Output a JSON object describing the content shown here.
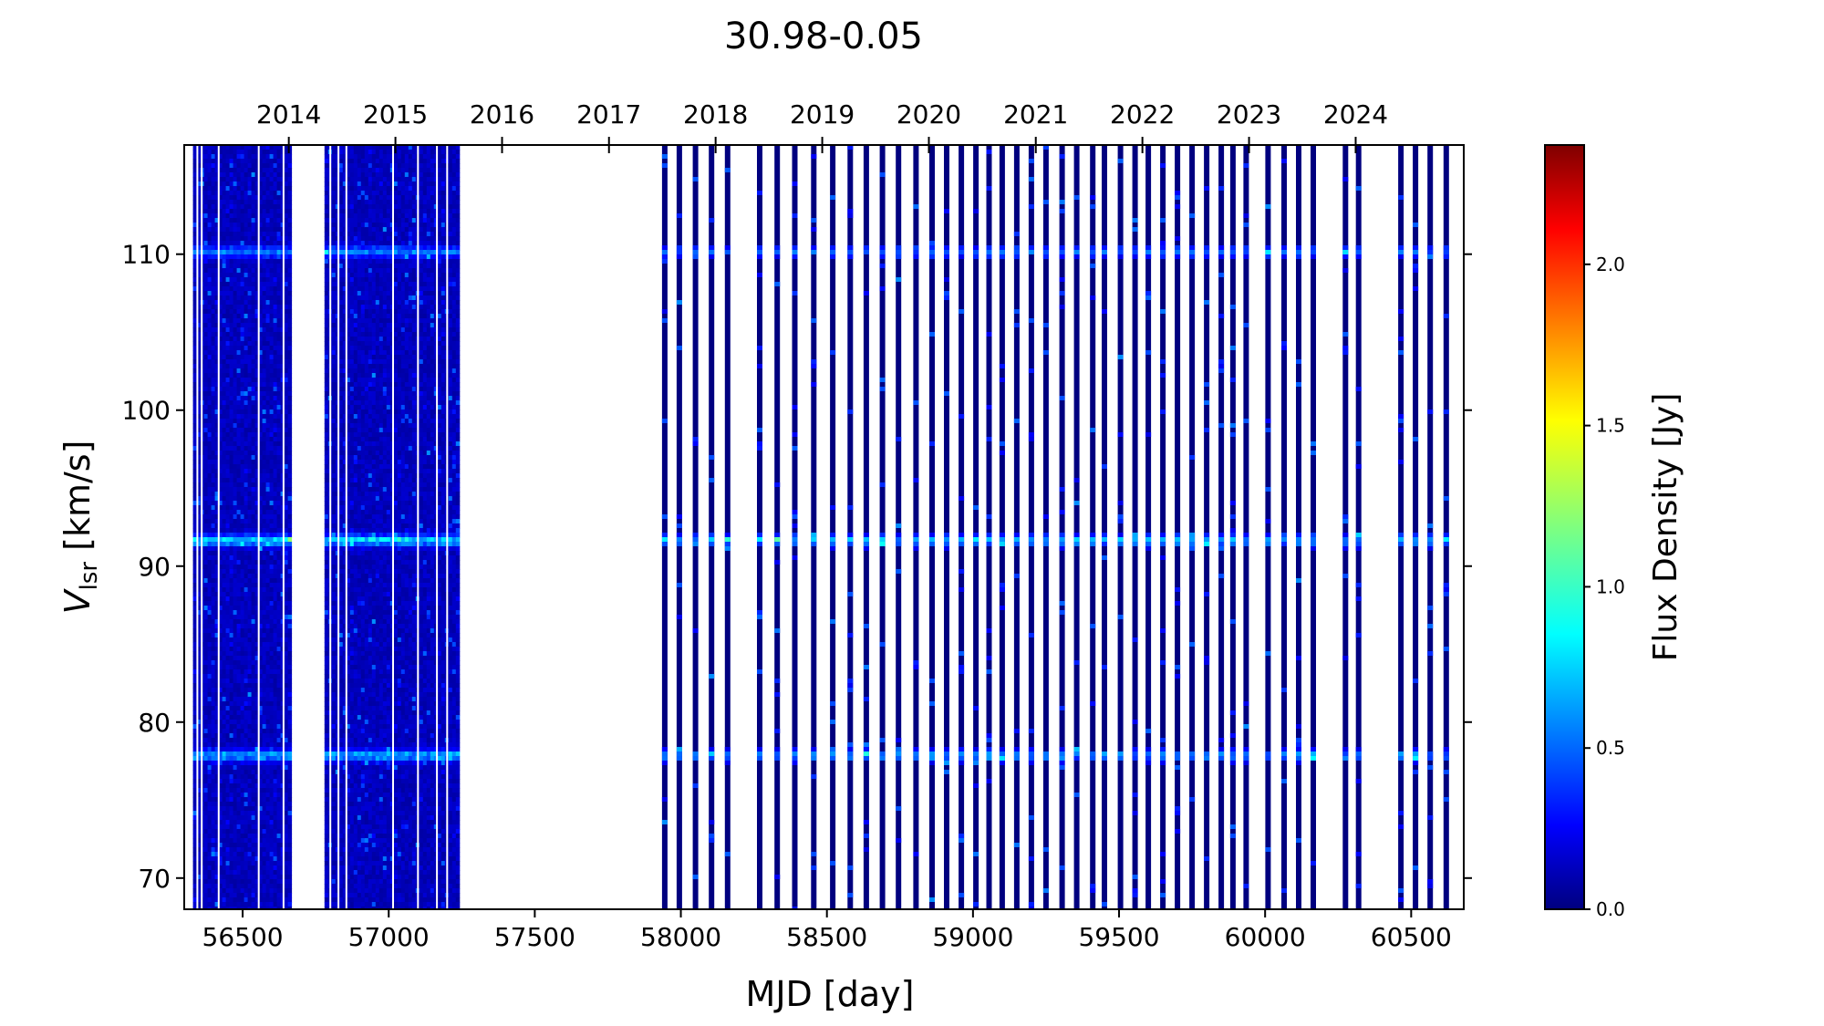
{
  "chart_data": {
    "type": "heatmap",
    "title": "30.98-0.05",
    "xlabel": "MJD [day]",
    "ylabel_main": "V",
    "ylabel_sub": "lsr",
    "ylabel_unit": " [km/s]",
    "colorbar_label": "Flux Density [Jy]",
    "xlim": [
      56300,
      60680
    ],
    "ylim": [
      68,
      117
    ],
    "clim": [
      0,
      2.37
    ],
    "colormap": "jet",
    "x_ticks": [
      56500,
      57000,
      57500,
      58000,
      58500,
      59000,
      59500,
      60000,
      60500
    ],
    "x_tick_labels": [
      "56500",
      "57000",
      "57500",
      "58000",
      "58500",
      "59000",
      "59500",
      "60000",
      "60500"
    ],
    "y_ticks": [
      70,
      80,
      90,
      100,
      110
    ],
    "y_tick_labels": [
      "70",
      "80",
      "90",
      "100",
      "110"
    ],
    "top_axis": {
      "years": [
        "2014",
        "2015",
        "2016",
        "2017",
        "2018",
        "2019",
        "2020",
        "2021",
        "2022",
        "2023",
        "2024"
      ],
      "mjd": [
        56658,
        57023,
        57388,
        57754,
        58119,
        58484,
        58849,
        59215,
        59580,
        59945,
        60310
      ]
    },
    "colorbar_ticks": [
      0.0,
      0.5,
      1.0,
      1.5,
      2.0
    ],
    "colorbar_tick_labels": [
      "0.0",
      "0.5",
      "1.0",
      "1.5",
      "2.0"
    ],
    "dense_blocks": [
      {
        "x_start": 56330,
        "x_end": 56665,
        "gaps": [
          56345,
          56360,
          56418,
          56555,
          56640
        ]
      },
      {
        "x_start": 56780,
        "x_end": 57240,
        "gaps": [
          56800,
          56828,
          56855,
          57015,
          57100,
          57165,
          57200
        ]
      }
    ],
    "observation_epochs": [
      57945,
      57995,
      58050,
      58105,
      58160,
      58270,
      58330,
      58390,
      58455,
      58520,
      58580,
      58635,
      58690,
      58745,
      58805,
      58860,
      58910,
      58960,
      59010,
      59055,
      59100,
      59150,
      59200,
      59250,
      59305,
      59355,
      59410,
      59450,
      59505,
      59555,
      59600,
      59650,
      59700,
      59750,
      59800,
      59850,
      59890,
      59935,
      60010,
      60065,
      60115,
      60165,
      60275,
      60320,
      60465,
      60515,
      60565,
      60620
    ],
    "emission_features": [
      {
        "velocity": 78.0,
        "peak": 0.75
      },
      {
        "velocity": 91.8,
        "peak": 0.9
      },
      {
        "velocity": 110.3,
        "peak": 0.6
      }
    ]
  }
}
